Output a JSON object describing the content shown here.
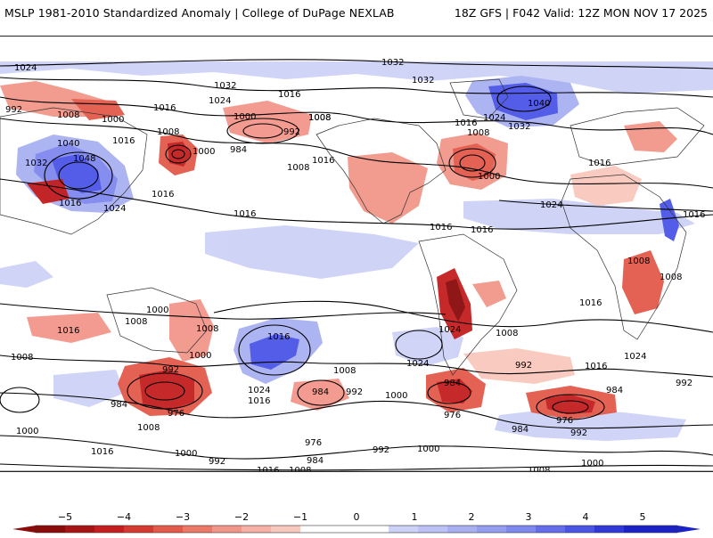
{
  "header": {
    "title": "MSLP 1981-2010 Standardized Anomaly | College of DuPage NEXLAB",
    "run_info": "18Z GFS | F042 Valid: 12Z MON NOV 17 2025"
  },
  "colors": {
    "neg5": "#8b0b0b",
    "neg4": "#c41e1e",
    "neg3": "#e35a4a",
    "neg2": "#f2968a",
    "neg1": "#f9c8bd",
    "pos1": "#cdd2f7",
    "pos2": "#a9b0f2",
    "pos3": "#7f88ee",
    "pos4": "#4a55e6",
    "pos5": "#1a22c8",
    "land": "#ffffff",
    "coast": "#333333",
    "isobar": "#000000"
  },
  "colorbar": {
    "ticks": [
      "−5",
      "−4",
      "−3",
      "−2",
      "−1",
      "0",
      "1",
      "2",
      "3",
      "4",
      "5"
    ]
  },
  "isobar_labels": [
    {
      "text": "1024"
    },
    {
      "text": "1032"
    },
    {
      "text": "992"
    },
    {
      "text": "1008"
    },
    {
      "text": "1000"
    },
    {
      "text": "1016"
    },
    {
      "text": "1024"
    },
    {
      "text": "1032"
    },
    {
      "text": "1016"
    },
    {
      "text": "1000"
    },
    {
      "text": "992"
    },
    {
      "text": "1008"
    },
    {
      "text": "984"
    },
    {
      "text": "1008"
    },
    {
      "text": "1016"
    },
    {
      "text": "1040"
    },
    {
      "text": "1048"
    },
    {
      "text": "1032"
    },
    {
      "text": "1024"
    },
    {
      "text": "1016"
    },
    {
      "text": "1000"
    },
    {
      "text": "1016"
    },
    {
      "text": "1032"
    },
    {
      "text": "1040"
    },
    {
      "text": "1024"
    },
    {
      "text": "1016"
    },
    {
      "text": "1008"
    },
    {
      "text": "1032"
    },
    {
      "text": "1000"
    },
    {
      "text": "1016"
    },
    {
      "text": "1024"
    },
    {
      "text": "1016"
    },
    {
      "text": "1016"
    },
    {
      "text": "1008"
    },
    {
      "text": "1008"
    },
    {
      "text": "1016"
    },
    {
      "text": "1016"
    },
    {
      "text": "1024"
    },
    {
      "text": "1008"
    },
    {
      "text": "1016"
    },
    {
      "text": "1008"
    },
    {
      "text": "1008"
    },
    {
      "text": "1000"
    },
    {
      "text": "992"
    },
    {
      "text": "984"
    },
    {
      "text": "976"
    },
    {
      "text": "1000"
    },
    {
      "text": "1016"
    },
    {
      "text": "1024"
    },
    {
      "text": "1016"
    },
    {
      "text": "1008"
    },
    {
      "text": "984"
    },
    {
      "text": "992"
    },
    {
      "text": "1000"
    },
    {
      "text": "1024"
    },
    {
      "text": "984"
    },
    {
      "text": "976"
    },
    {
      "text": "1008"
    },
    {
      "text": "992"
    },
    {
      "text": "1016"
    },
    {
      "text": "992"
    },
    {
      "text": "984"
    },
    {
      "text": "976"
    },
    {
      "text": "984"
    },
    {
      "text": "992"
    },
    {
      "text": "1000"
    },
    {
      "text": "1008"
    },
    {
      "text": "1016"
    },
    {
      "text": "992"
    },
    {
      "text": "1000"
    },
    {
      "text": "1008"
    },
    {
      "text": "1016"
    },
    {
      "text": "976"
    },
    {
      "text": "984"
    },
    {
      "text": "992"
    },
    {
      "text": "1000"
    },
    {
      "text": "1008"
    },
    {
      "text": "1000"
    },
    {
      "text": "1016"
    },
    {
      "text": "1008"
    },
    {
      "text": "1024"
    },
    {
      "text": "1016"
    },
    {
      "text": "1008"
    }
  ]
}
